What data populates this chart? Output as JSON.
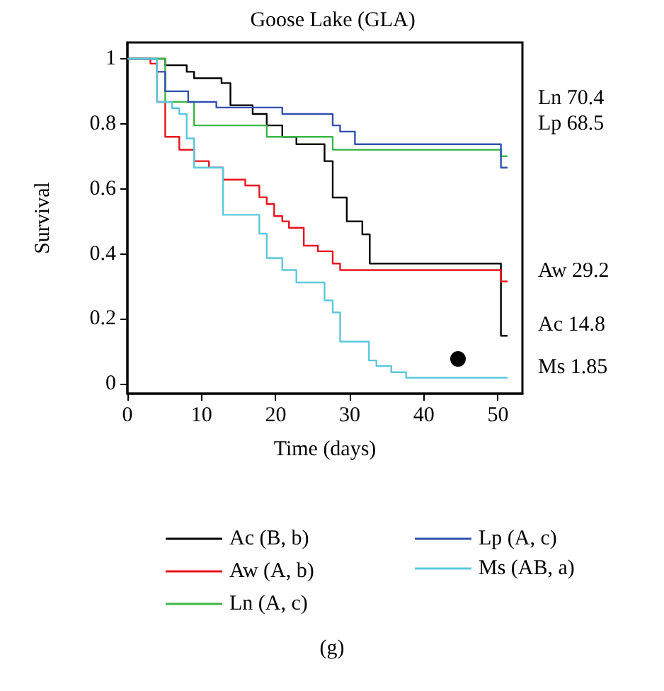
{
  "chart_data": {
    "type": "step",
    "title": "Goose Lake (GLA)",
    "xlabel": "Time (days)",
    "ylabel": "Survival",
    "xlim": [
      0,
      53.3
    ],
    "xticks": [
      0,
      10,
      20,
      30,
      40,
      50
    ],
    "ylim": [
      -0.03,
      1.05
    ],
    "yticks": [
      0,
      0.2,
      0.4,
      0.6,
      0.8,
      1
    ],
    "grid": false,
    "legend": "bottom",
    "marker": "none",
    "line_style": "solid",
    "series": [
      {
        "name": "Ac (B, b)",
        "color": "#000000",
        "x": [
          0,
          5.1,
          8,
          9,
          12.7,
          13.9,
          16.9,
          18.8,
          20.9,
          22.8,
          26.6,
          27.7,
          29.6,
          31.7,
          32.7,
          50.4,
          51.3
        ],
        "values": [
          1,
          0.98,
          0.96,
          0.94,
          0.925,
          0.857,
          0.83,
          0.795,
          0.76,
          0.737,
          0.685,
          0.573,
          0.5,
          0.46,
          0.37,
          0.148,
          0.148
        ]
      },
      {
        "name": "Aw (A, b)",
        "color": "#e8141b",
        "x": [
          0,
          3.1,
          4,
          5.1,
          7,
          9,
          11,
          12.9,
          15.9,
          17.8,
          18.8,
          19.8,
          20.9,
          21.8,
          23.8,
          25.7,
          27.7,
          28.7,
          50.4,
          51.3
        ],
        "values": [
          1,
          0.985,
          0.867,
          0.76,
          0.72,
          0.685,
          0.665,
          0.628,
          0.61,
          0.574,
          0.553,
          0.516,
          0.5,
          0.48,
          0.425,
          0.408,
          0.37,
          0.35,
          0.315,
          0.315
        ]
      },
      {
        "name": "Ln (A, c)",
        "color": "#3cb846",
        "x": [
          0,
          5.1,
          9,
          18.8,
          27.7,
          50.4,
          51.3
        ],
        "values": [
          1,
          0.867,
          0.795,
          0.76,
          0.72,
          0.7,
          0.7
        ]
      },
      {
        "name": "Lp (A, c)",
        "color": "#3050b0",
        "x": [
          0,
          4,
          5.1,
          8.2,
          12,
          20.9,
          27.7,
          28.7,
          30.7,
          50.4,
          51.3
        ],
        "values": [
          1,
          0.96,
          0.9,
          0.867,
          0.85,
          0.83,
          0.795,
          0.776,
          0.737,
          0.665,
          0.665
        ]
      },
      {
        "name": "Ms (AB, a)",
        "color": "#5bc8dc",
        "x": [
          0,
          4,
          6,
          7,
          8,
          9,
          12.9,
          17.8,
          18.8,
          20.9,
          22.8,
          26.6,
          27.7,
          28.7,
          32.6,
          33.6,
          35.6,
          37.6,
          51.3
        ],
        "values": [
          1,
          0.867,
          0.848,
          0.83,
          0.755,
          0.665,
          0.52,
          0.462,
          0.387,
          0.35,
          0.312,
          0.257,
          0.22,
          0.13,
          0.072,
          0.055,
          0.036,
          0.019,
          0.019
        ]
      }
    ],
    "annotations": [
      "Ln 70.4",
      "Lp 68.5",
      "Aw 29.2",
      "Ac 14.8",
      "Ms 1.85",
      "(g)"
    ]
  }
}
